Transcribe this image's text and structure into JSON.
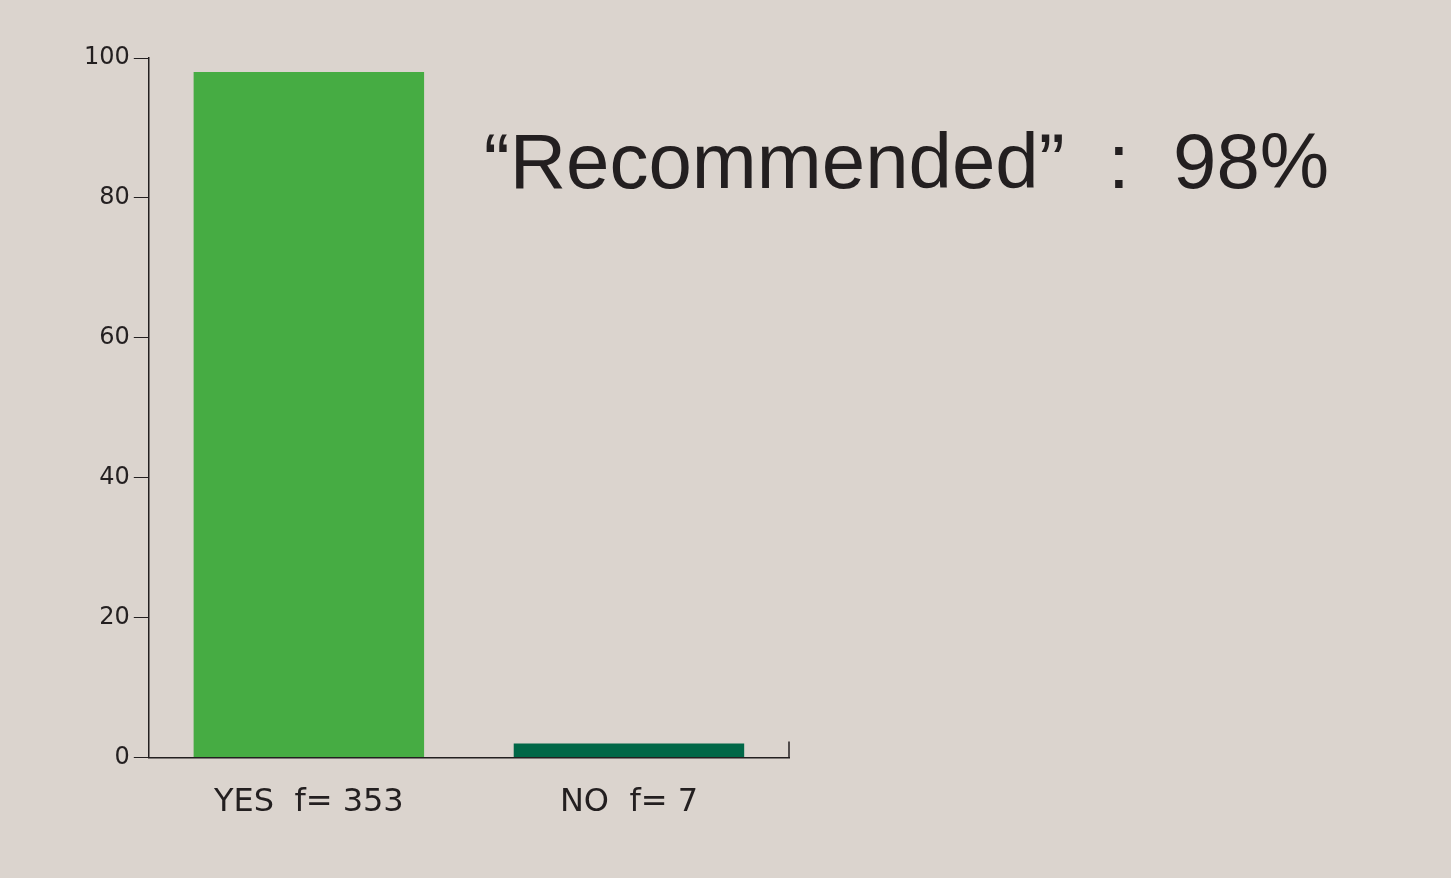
{
  "chart_data": {
    "type": "bar",
    "categories": [
      "YES  f= 353",
      "NO  f= 7"
    ],
    "values": [
      98,
      2
    ],
    "colors": [
      "#46ac43",
      "#006747"
    ],
    "ylim": [
      0,
      100
    ],
    "yticks": [
      0,
      20,
      40,
      60,
      80,
      100
    ],
    "grid": false,
    "legend": false,
    "annotations": [
      "“Recommended”  :  98%"
    ]
  }
}
